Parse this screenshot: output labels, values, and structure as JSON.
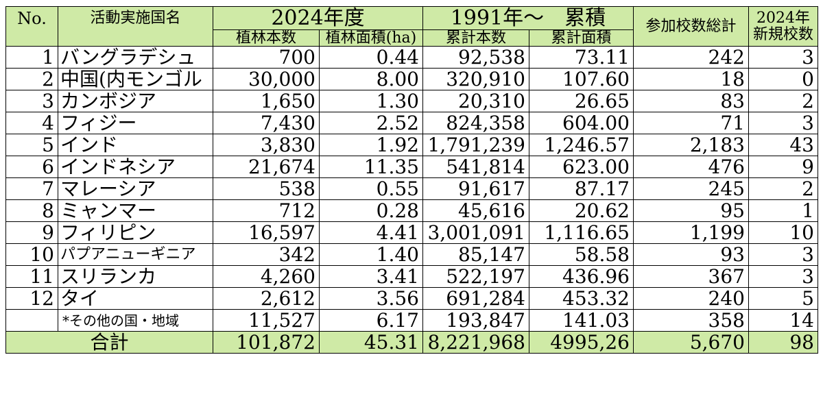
{
  "header": {
    "no": "No.",
    "country": "活動実施国名",
    "year_group": "2024年度",
    "cum_group": "1991年～　累積",
    "trees": "植林本数",
    "area": "植林面積(ha)",
    "cum_trees": "累計本数",
    "cum_area": "累計面積",
    "schools_total": "参加校数総計",
    "new_schools_line1": "2024年",
    "new_schools_line2": "新規校数"
  },
  "rows": [
    {
      "no": "1",
      "country": "バングラデシュ",
      "trees": "700",
      "area": "0.44",
      "cum_trees": "92,538",
      "cum_area": "73.11",
      "schools": "242",
      "new": "3"
    },
    {
      "no": "2",
      "country": "中国(内モンゴル",
      "trees": "30,000",
      "area": "8.00",
      "cum_trees": "320,910",
      "cum_area": "107.60",
      "schools": "18",
      "new": "0"
    },
    {
      "no": "3",
      "country": "カンボジア",
      "trees": "1,650",
      "area": "1.30",
      "cum_trees": "20,310",
      "cum_area": "26.65",
      "schools": "83",
      "new": "2"
    },
    {
      "no": "4",
      "country": "フィジー",
      "trees": "7,430",
      "area": "2.52",
      "cum_trees": "824,358",
      "cum_area": "604.00",
      "schools": "71",
      "new": "3"
    },
    {
      "no": "5",
      "country": "インド",
      "trees": "3,830",
      "area": "1.92",
      "cum_trees": "1,791,239",
      "cum_area": "1,246.57",
      "schools": "2,183",
      "new": "43"
    },
    {
      "no": "6",
      "country": "インドネシア",
      "trees": "21,674",
      "area": "11.35",
      "cum_trees": "541,814",
      "cum_area": "623.00",
      "schools": "476",
      "new": "9"
    },
    {
      "no": "7",
      "country": "マレーシア",
      "trees": "538",
      "area": "0.55",
      "cum_trees": "91,617",
      "cum_area": "87.17",
      "schools": "245",
      "new": "2"
    },
    {
      "no": "8",
      "country": "ミャンマー",
      "trees": "712",
      "area": "0.28",
      "cum_trees": "45,616",
      "cum_area": "20.62",
      "schools": "95",
      "new": "1"
    },
    {
      "no": "9",
      "country": "フィリピン",
      "trees": "16,597",
      "area": "4.41",
      "cum_trees": "3,001,091",
      "cum_area": "1,116.65",
      "schools": "1,199",
      "new": "10"
    },
    {
      "no": "10",
      "country": "パプアニューギニア",
      "trees": "342",
      "area": "1.40",
      "cum_trees": "85,147",
      "cum_area": "58.58",
      "schools": "93",
      "new": "3"
    },
    {
      "no": "11",
      "country": "スリランカ",
      "trees": "4,260",
      "area": "3.41",
      "cum_trees": "522,197",
      "cum_area": "436.96",
      "schools": "367",
      "new": "3"
    },
    {
      "no": "12",
      "country": "タイ",
      "trees": "2,612",
      "area": "3.56",
      "cum_trees": "691,284",
      "cum_area": "453.32",
      "schools": "240",
      "new": "5"
    }
  ],
  "other": {
    "no": "",
    "country": "*その他の国・地域",
    "trees": "11,527",
    "area": "6.17",
    "cum_trees": "193,847",
    "cum_area": "141.03",
    "schools": "358",
    "new": "14"
  },
  "total": {
    "label": "合計",
    "trees": "101,872",
    "area": "45.31",
    "cum_trees": "8,221,968",
    "cum_area": "4995,26",
    "schools": "5,670",
    "new": "98"
  }
}
